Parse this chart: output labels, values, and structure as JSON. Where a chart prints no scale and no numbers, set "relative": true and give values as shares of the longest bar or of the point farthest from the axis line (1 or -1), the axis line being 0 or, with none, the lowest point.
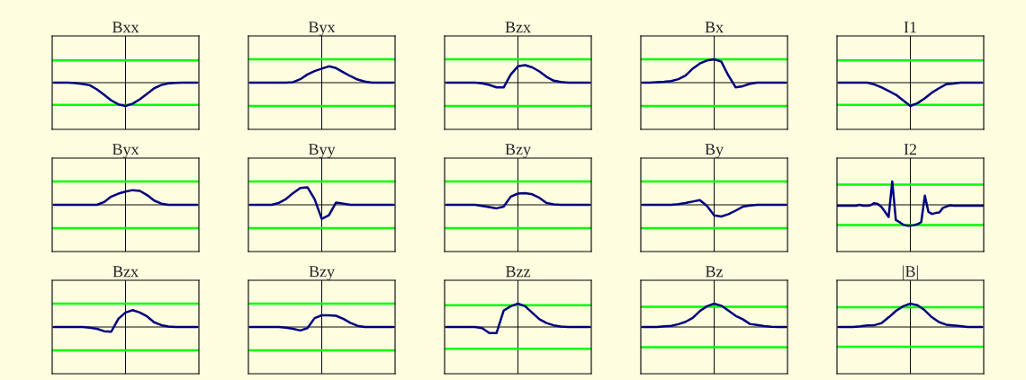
{
  "chart_data": [
    {
      "type": "line",
      "title": "Bxx",
      "relative": true,
      "categories": [
        null,
        null,
        null,
        null,
        null,
        null,
        null,
        null,
        null,
        null,
        null,
        null,
        null,
        null,
        null,
        null,
        null,
        null,
        null,
        null,
        null
      ],
      "series": [
        {
          "color": "#000080",
          "values": [
            0,
            0,
            0,
            -0.02,
            -0.06,
            -0.11,
            -0.29,
            -0.52,
            -0.76,
            -0.93,
            -1,
            -0.9,
            -0.71,
            -0.48,
            -0.24,
            -0.1,
            -0.03,
            -0.01,
            0,
            0,
            0
          ]
        }
      ],
      "ref_lines": [
        {
          "axis": "y",
          "value": 0.95,
          "color": "#00ff00"
        },
        {
          "axis": "y",
          "value": -0.95,
          "color": "#00ff00"
        }
      ]
    },
    {
      "type": "line",
      "title": "Byx",
      "relative": true,
      "categories": [
        null,
        null,
        null,
        null,
        null,
        null,
        null,
        null,
        null,
        null,
        null,
        null,
        null,
        null,
        null,
        null,
        null,
        null,
        null,
        null,
        null
      ],
      "series": [
        {
          "color": "#000080",
          "values": [
            0,
            0,
            0,
            0,
            0,
            0,
            0.03,
            0.21,
            0.5,
            0.71,
            0.86,
            1,
            0.89,
            0.64,
            0.4,
            0.19,
            0.07,
            0,
            0,
            0,
            0
          ]
        }
      ],
      "ref_lines": [
        {
          "axis": "y",
          "value": 1.43,
          "color": "#00ff00"
        },
        {
          "axis": "y",
          "value": -1.43,
          "color": "#00ff00"
        }
      ]
    },
    {
      "type": "line",
      "title": "Bzx",
      "relative": true,
      "categories": [
        null,
        null,
        null,
        null,
        null,
        null,
        null,
        null,
        null,
        null,
        null,
        null,
        null,
        null,
        null,
        null,
        null,
        null,
        null,
        null,
        null
      ],
      "series": [
        {
          "color": "#000080",
          "values": [
            0,
            0,
            0,
            0,
            0,
            -0.04,
            -0.13,
            -0.27,
            -0.27,
            0.47,
            0.93,
            1,
            0.87,
            0.64,
            0.33,
            0.11,
            0.04,
            0,
            0,
            0,
            0
          ]
        }
      ],
      "ref_lines": [
        {
          "axis": "y",
          "value": 1.33,
          "color": "#00ff00"
        },
        {
          "axis": "y",
          "value": -1.33,
          "color": "#00ff00"
        }
      ]
    },
    {
      "type": "line",
      "title": "Bx",
      "relative": true,
      "categories": [
        null,
        null,
        null,
        null,
        null,
        null,
        null,
        null,
        null,
        null,
        null,
        null,
        null,
        null,
        null,
        null,
        null,
        null,
        null,
        null,
        null
      ],
      "series": [
        {
          "color": "#000080",
          "values": [
            0,
            0,
            0.02,
            0.04,
            0.07,
            0.15,
            0.3,
            0.6,
            0.82,
            0.95,
            1,
            0.9,
            0.3,
            -0.2,
            -0.15,
            -0.05,
            0,
            0,
            0,
            0,
            0
          ]
        }
      ],
      "ref_lines": [
        {
          "axis": "y",
          "value": 1,
          "color": "#00ff00"
        },
        {
          "axis": "y",
          "value": -1,
          "color": "#00ff00"
        }
      ]
    },
    {
      "type": "line",
      "title": "I1",
      "relative": true,
      "categories": [
        null,
        null,
        null,
        null,
        null,
        null,
        null,
        null,
        null,
        null,
        null,
        null,
        null,
        null,
        null,
        null,
        null,
        null,
        null,
        null,
        null
      ],
      "series": [
        {
          "color": "#000080",
          "values": [
            0,
            0,
            0,
            0,
            0,
            -0.08,
            -0.21,
            -0.36,
            -0.52,
            -0.76,
            -1,
            -0.88,
            -0.67,
            -0.43,
            -0.24,
            -0.07,
            -0.04,
            0,
            0,
            0,
            0
          ]
        }
      ],
      "ref_lines": [
        {
          "axis": "y",
          "value": 0.95,
          "color": "#00ff00"
        },
        {
          "axis": "y",
          "value": -0.95,
          "color": "#00ff00"
        }
      ]
    },
    {
      "type": "line",
      "title": "Byx",
      "relative": true,
      "categories": [
        null,
        null,
        null,
        null,
        null,
        null,
        null,
        null,
        null,
        null,
        null,
        null,
        null,
        null,
        null,
        null,
        null,
        null,
        null,
        null,
        null
      ],
      "series": [
        {
          "color": "#000080",
          "values": [
            0,
            0,
            0,
            0,
            0,
            0,
            0,
            0.19,
            0.56,
            0.76,
            0.9,
            1,
            0.95,
            0.67,
            0.29,
            0.08,
            0,
            0,
            0,
            0,
            0
          ]
        }
      ],
      "ref_lines": [
        {
          "axis": "y",
          "value": 1.59,
          "color": "#00ff00"
        },
        {
          "axis": "y",
          "value": -1.59,
          "color": "#00ff00"
        }
      ]
    },
    {
      "type": "line",
      "title": "Byy",
      "relative": true,
      "categories": [
        null,
        null,
        null,
        null,
        null,
        null,
        null,
        null,
        null,
        null,
        null,
        null,
        null,
        null,
        null,
        null,
        null,
        null,
        null,
        null,
        null
      ],
      "series": [
        {
          "color": "#000080",
          "values": [
            0,
            0,
            0,
            0,
            0.11,
            0.33,
            0.67,
            0.96,
            1,
            0.33,
            -0.8,
            -0.6,
            0.13,
            0.07,
            0,
            0,
            0,
            0,
            0,
            0,
            0
          ]
        }
      ],
      "ref_lines": [
        {
          "axis": "y",
          "value": 1.33,
          "color": "#00ff00"
        },
        {
          "axis": "y",
          "value": -1.33,
          "color": "#00ff00"
        }
      ]
    },
    {
      "type": "line",
      "title": "Bzy",
      "relative": true,
      "categories": [
        null,
        null,
        null,
        null,
        null,
        null,
        null,
        null,
        null,
        null,
        null,
        null,
        null,
        null,
        null,
        null,
        null,
        null,
        null,
        null,
        null
      ],
      "series": [
        {
          "color": "#000080",
          "values": [
            0,
            0,
            0,
            0,
            0,
            -0.1,
            -0.2,
            -0.3,
            -0.16,
            0.7,
            0.96,
            1,
            0.9,
            0.6,
            0.16,
            0.04,
            0,
            0,
            0,
            0,
            0
          ]
        }
      ],
      "ref_lines": [
        {
          "axis": "y",
          "value": 2,
          "color": "#00ff00"
        },
        {
          "axis": "y",
          "value": -2,
          "color": "#00ff00"
        }
      ]
    },
    {
      "type": "line",
      "title": "By",
      "relative": true,
      "categories": [
        null,
        null,
        null,
        null,
        null,
        null,
        null,
        null,
        null,
        null,
        null,
        null,
        null,
        null,
        null,
        null,
        null,
        null,
        null,
        null,
        null
      ],
      "series": [
        {
          "color": "#000080",
          "values": [
            0,
            0,
            0,
            0,
            0,
            0.06,
            0.16,
            0.28,
            0.4,
            -0.1,
            -0.9,
            -1,
            -0.8,
            -0.5,
            -0.16,
            -0.06,
            0,
            0,
            0,
            0,
            0
          ]
        }
      ],
      "ref_lines": [
        {
          "axis": "y",
          "value": 2,
          "color": "#00ff00"
        },
        {
          "axis": "y",
          "value": -2,
          "color": "#00ff00"
        }
      ]
    },
    {
      "type": "line",
      "title": "I2",
      "relative": true,
      "categories": [
        null,
        null,
        null,
        null,
        null,
        null,
        null,
        null,
        null,
        null,
        null,
        null,
        null,
        null,
        null,
        null,
        null,
        null,
        null,
        null,
        null,
        null,
        null,
        null,
        null,
        null,
        null,
        null,
        null,
        null,
        null,
        null,
        null,
        null,
        null,
        null,
        null,
        null,
        null,
        null,
        null
      ],
      "series": [
        {
          "color": "#000080",
          "values": [
            -0.04,
            -0.04,
            -0.04,
            -0.04,
            -0.04,
            -0.04,
            0,
            -0.04,
            -0.04,
            -0.02,
            0.07,
            0.04,
            -0.09,
            -0.3,
            -0.52,
            1,
            -0.65,
            -0.74,
            -0.85,
            -0.89,
            -0.89,
            -0.87,
            -0.83,
            -0.74,
            0.39,
            -0.3,
            -0.39,
            -0.35,
            -0.33,
            -0.13,
            -0.07,
            -0.02,
            -0.04,
            -0.04,
            -0.04,
            -0.04,
            -0.04,
            -0.04,
            -0.04,
            -0.04,
            -0.04
          ]
        }
      ],
      "ref_lines": [
        {
          "axis": "y",
          "value": 0.87,
          "color": "#00ff00"
        },
        {
          "axis": "y",
          "value": -0.87,
          "color": "#00ff00"
        }
      ]
    },
    {
      "type": "line",
      "title": "Bzx",
      "relative": true,
      "categories": [
        null,
        null,
        null,
        null,
        null,
        null,
        null,
        null,
        null,
        null,
        null,
        null,
        null,
        null,
        null,
        null,
        null,
        null,
        null,
        null,
        null
      ],
      "series": [
        {
          "color": "#000080",
          "values": [
            0,
            0,
            0,
            0,
            0,
            -0.04,
            -0.11,
            -0.25,
            -0.28,
            0.49,
            0.86,
            1,
            0.86,
            0.63,
            0.28,
            0.11,
            0.03,
            0,
            0,
            0,
            0
          ]
        }
      ],
      "ref_lines": [
        {
          "axis": "y",
          "value": 1.39,
          "color": "#00ff00"
        },
        {
          "axis": "y",
          "value": -1.39,
          "color": "#00ff00"
        }
      ]
    },
    {
      "type": "line",
      "title": "Bzy",
      "relative": true,
      "categories": [
        null,
        null,
        null,
        null,
        null,
        null,
        null,
        null,
        null,
        null,
        null,
        null,
        null,
        null,
        null,
        null,
        null,
        null,
        null,
        null,
        null
      ],
      "series": [
        {
          "color": "#000080",
          "values": [
            0,
            0,
            0,
            0,
            0,
            -0.06,
            -0.16,
            -0.3,
            -0.1,
            0.76,
            1,
            1,
            0.96,
            0.7,
            0.36,
            0.1,
            0,
            0,
            0,
            0,
            0
          ]
        }
      ],
      "ref_lines": [
        {
          "axis": "y",
          "value": 2,
          "color": "#00ff00"
        },
        {
          "axis": "y",
          "value": -2,
          "color": "#00ff00"
        }
      ]
    },
    {
      "type": "line",
      "title": "Bzz",
      "relative": true,
      "categories": [
        null,
        null,
        null,
        null,
        null,
        null,
        null,
        null,
        null,
        null,
        null,
        null,
        null,
        null,
        null,
        null,
        null,
        null,
        null,
        null,
        null
      ],
      "series": [
        {
          "color": "#000080",
          "values": [
            0,
            0,
            0,
            0,
            0,
            -0.05,
            -0.26,
            -0.26,
            0.7,
            0.89,
            1,
            0.89,
            0.61,
            0.33,
            0.17,
            0.07,
            0.02,
            0,
            0,
            0,
            0
          ]
        }
      ],
      "ref_lines": [
        {
          "axis": "y",
          "value": 0.93,
          "color": "#00ff00"
        },
        {
          "axis": "y",
          "value": -0.93,
          "color": "#00ff00"
        }
      ]
    },
    {
      "type": "line",
      "title": "Bz",
      "relative": true,
      "categories": [
        null,
        null,
        null,
        null,
        null,
        null,
        null,
        null,
        null,
        null,
        null,
        null,
        null,
        null,
        null,
        null,
        null,
        null,
        null,
        null,
        null
      ],
      "series": [
        {
          "color": "#000080",
          "values": [
            0,
            0,
            0,
            0.03,
            0.05,
            0.12,
            0.22,
            0.39,
            0.68,
            0.89,
            1,
            0.91,
            0.7,
            0.48,
            0.33,
            0.13,
            0.09,
            0.04,
            0.01,
            0,
            0
          ]
        }
      ],
      "ref_lines": [
        {
          "axis": "y",
          "value": 0.87,
          "color": "#00ff00"
        },
        {
          "axis": "y",
          "value": -0.87,
          "color": "#00ff00"
        }
      ]
    },
    {
      "type": "line",
      "title": "|B|",
      "relative": true,
      "categories": [
        null,
        null,
        null,
        null,
        null,
        null,
        null,
        null,
        null,
        null,
        null,
        null,
        null,
        null,
        null,
        null,
        null,
        null,
        null,
        null,
        null
      ],
      "series": [
        {
          "color": "#000080",
          "values": [
            0,
            0,
            0,
            0.03,
            0.07,
            0.08,
            0.17,
            0.42,
            0.69,
            0.89,
            1,
            0.93,
            0.72,
            0.42,
            0.21,
            0.1,
            0.07,
            0.04,
            0,
            0,
            0
          ]
        }
      ],
      "ref_lines": [
        {
          "axis": "y",
          "value": 0.85,
          "color": "#00ff00"
        },
        {
          "axis": "y",
          "value": -0.85,
          "color": "#00ff00"
        }
      ]
    }
  ]
}
